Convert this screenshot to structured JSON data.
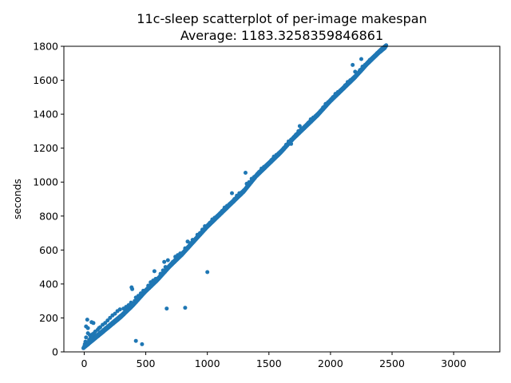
{
  "chart_data": {
    "type": "scatter",
    "title": "11c-sleep scatterplot of per-image makespan",
    "subtitle": "Average: 1183.3258359846861",
    "xlabel": "",
    "ylabel": "seconds",
    "xlim": [
      -165,
      3375
    ],
    "ylim": [
      0,
      1800
    ],
    "xticks": [
      0,
      500,
      1000,
      1500,
      2000,
      2500,
      3000
    ],
    "yticks": [
      0,
      200,
      400,
      600,
      800,
      1000,
      1200,
      1400,
      1600,
      1800
    ],
    "grid": false,
    "marker_color": "#1f77b4",
    "series": [
      {
        "main_trend": [
          [
            0,
            30
          ],
          [
            100,
            90
          ],
          [
            200,
            150
          ],
          [
            300,
            210
          ],
          [
            400,
            280
          ],
          [
            500,
            360
          ],
          [
            600,
            430
          ],
          [
            700,
            510
          ],
          [
            800,
            580
          ],
          [
            900,
            660
          ],
          [
            1000,
            740
          ],
          [
            1100,
            810
          ],
          [
            1200,
            880
          ],
          [
            1300,
            950
          ],
          [
            1400,
            1040
          ],
          [
            1500,
            1110
          ],
          [
            1600,
            1180
          ],
          [
            1700,
            1260
          ],
          [
            1800,
            1330
          ],
          [
            1900,
            1400
          ],
          [
            2000,
            1480
          ],
          [
            2100,
            1550
          ],
          [
            2200,
            1620
          ],
          [
            2300,
            1700
          ],
          [
            2400,
            1770
          ],
          [
            2450,
            1800
          ]
        ],
        "points": [
          [
            0,
            30
          ],
          [
            5,
            45
          ],
          [
            10,
            60
          ],
          [
            15,
            150
          ],
          [
            20,
            40
          ],
          [
            25,
            190
          ],
          [
            30,
            140
          ],
          [
            35,
            55
          ],
          [
            40,
            70
          ],
          [
            45,
            100
          ],
          [
            50,
            80
          ],
          [
            60,
            95
          ],
          [
            70,
            105
          ],
          [
            75,
            170
          ],
          [
            80,
            110
          ],
          [
            90,
            120
          ],
          [
            100,
            90
          ],
          [
            110,
            130
          ],
          [
            120,
            140
          ],
          [
            130,
            145
          ],
          [
            150,
            160
          ],
          [
            170,
            170
          ],
          [
            190,
            185
          ],
          [
            200,
            150
          ],
          [
            210,
            200
          ],
          [
            230,
            215
          ],
          [
            250,
            225
          ],
          [
            270,
            240
          ],
          [
            290,
            250
          ],
          [
            300,
            210
          ],
          [
            320,
            255
          ],
          [
            340,
            265
          ],
          [
            360,
            275
          ],
          [
            380,
            290
          ],
          [
            385,
            380
          ],
          [
            390,
            370
          ],
          [
            400,
            280
          ],
          [
            410,
            300
          ],
          [
            420,
            320
          ],
          [
            440,
            330
          ],
          [
            460,
            345
          ],
          [
            480,
            360
          ],
          [
            500,
            360
          ],
          [
            520,
            390
          ],
          [
            540,
            410
          ],
          [
            560,
            420
          ],
          [
            570,
            475
          ],
          [
            580,
            430
          ],
          [
            600,
            430
          ],
          [
            620,
            460
          ],
          [
            640,
            480
          ],
          [
            650,
            530
          ],
          [
            660,
            500
          ],
          [
            680,
            540
          ],
          [
            700,
            510
          ],
          [
            720,
            530
          ],
          [
            740,
            560
          ],
          [
            760,
            570
          ],
          [
            780,
            580
          ],
          [
            800,
            580
          ],
          [
            820,
            610
          ],
          [
            840,
            650
          ],
          [
            860,
            640
          ],
          [
            880,
            660
          ],
          [
            900,
            660
          ],
          [
            920,
            690
          ],
          [
            940,
            700
          ],
          [
            960,
            720
          ],
          [
            980,
            740
          ],
          [
            1000,
            740
          ],
          [
            1020,
            760
          ],
          [
            1040,
            780
          ],
          [
            1060,
            790
          ],
          [
            1080,
            800
          ],
          [
            1100,
            810
          ],
          [
            1120,
            830
          ],
          [
            1140,
            850
          ],
          [
            1160,
            860
          ],
          [
            1180,
            870
          ],
          [
            1200,
            880
          ],
          [
            1220,
            900
          ],
          [
            1240,
            920
          ],
          [
            1260,
            935
          ],
          [
            1280,
            940
          ],
          [
            1300,
            950
          ],
          [
            1320,
            990
          ],
          [
            1340,
            1000
          ],
          [
            1360,
            1020
          ],
          [
            1380,
            1030
          ],
          [
            1400,
            1040
          ],
          [
            1420,
            1060
          ],
          [
            1440,
            1080
          ],
          [
            1460,
            1090
          ],
          [
            1480,
            1100
          ],
          [
            1500,
            1110
          ],
          [
            1520,
            1130
          ],
          [
            1540,
            1150
          ],
          [
            1560,
            1160
          ],
          [
            1580,
            1170
          ],
          [
            1600,
            1180
          ],
          [
            1620,
            1200
          ],
          [
            1640,
            1220
          ],
          [
            1660,
            1240
          ],
          [
            1680,
            1250
          ],
          [
            1700,
            1260
          ],
          [
            1720,
            1280
          ],
          [
            1740,
            1300
          ],
          [
            1760,
            1310
          ],
          [
            1780,
            1320
          ],
          [
            1800,
            1330
          ],
          [
            1820,
            1350
          ],
          [
            1840,
            1370
          ],
          [
            1860,
            1380
          ],
          [
            1880,
            1390
          ],
          [
            1900,
            1400
          ],
          [
            1920,
            1420
          ],
          [
            1940,
            1440
          ],
          [
            1960,
            1460
          ],
          [
            1980,
            1470
          ],
          [
            2000,
            1480
          ],
          [
            2020,
            1500
          ],
          [
            2040,
            1520
          ],
          [
            2060,
            1530
          ],
          [
            2080,
            1540
          ],
          [
            2100,
            1550
          ],
          [
            2120,
            1570
          ],
          [
            2140,
            1590
          ],
          [
            2160,
            1600
          ],
          [
            2180,
            1610
          ],
          [
            2200,
            1620
          ],
          [
            2220,
            1640
          ],
          [
            2240,
            1660
          ],
          [
            2260,
            1680
          ],
          [
            2280,
            1690
          ],
          [
            2300,
            1700
          ],
          [
            2320,
            1720
          ],
          [
            2340,
            1730
          ],
          [
            2360,
            1745
          ],
          [
            2380,
            1760
          ],
          [
            2400,
            1770
          ],
          [
            2420,
            1785
          ],
          [
            2440,
            1795
          ],
          [
            2450,
            1800
          ],
          [
            2250,
            1725
          ],
          [
            2200,
            1650
          ],
          [
            2180,
            1690
          ],
          [
            1680,
            1225
          ],
          [
            1750,
            1330
          ],
          [
            1310,
            1055
          ],
          [
            1200,
            935
          ],
          [
            1000,
            470
          ],
          [
            820,
            260
          ],
          [
            670,
            255
          ],
          [
            470,
            45
          ],
          [
            420,
            65
          ],
          [
            60,
            175
          ],
          [
            30,
            110
          ],
          [
            15,
            85
          ]
        ]
      }
    ]
  }
}
